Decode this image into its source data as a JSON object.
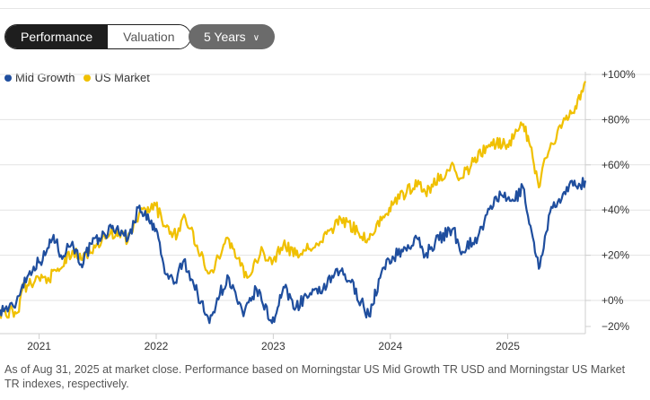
{
  "toggle": {
    "performance": "Performance",
    "valuation": "Valuation"
  },
  "period": {
    "label": "5 Years"
  },
  "colors": {
    "mid_growth": "#1f4e9e",
    "us_market": "#f0c000",
    "grid": "#e3e3e3"
  },
  "chart_data": {
    "type": "line",
    "x_ticks": [
      "2021",
      "2022",
      "2023",
      "2024",
      "2025"
    ],
    "y_ticks": [
      "+100%",
      "+80%",
      "+60%",
      "+40%",
      "+20%",
      "+0%",
      "−20%"
    ],
    "ylim": [
      -20,
      100
    ],
    "xlim": [
      "2020-09-01",
      "2025-08-31"
    ],
    "legend": "top-left",
    "series": [
      {
        "name": "Mid Growth",
        "color": "#1f4e9e",
        "points": [
          [
            "2020-09-01",
            -4
          ],
          [
            "2020-10-15",
            -3
          ],
          [
            "2020-11-10",
            7
          ],
          [
            "2020-12-15",
            15
          ],
          [
            "2021-01-20",
            20
          ],
          [
            "2021-02-15",
            29
          ],
          [
            "2021-03-10",
            20
          ],
          [
            "2021-04-15",
            26
          ],
          [
            "2021-05-12",
            16
          ],
          [
            "2021-06-15",
            25
          ],
          [
            "2021-07-15",
            28
          ],
          [
            "2021-08-15",
            32
          ],
          [
            "2021-09-15",
            31
          ],
          [
            "2021-10-05",
            27
          ],
          [
            "2021-11-10",
            42
          ],
          [
            "2021-12-10",
            35
          ],
          [
            "2022-01-05",
            30
          ],
          [
            "2022-01-28",
            12
          ],
          [
            "2022-03-01",
            8
          ],
          [
            "2022-03-29",
            18
          ],
          [
            "2022-05-10",
            3
          ],
          [
            "2022-06-16",
            -10
          ],
          [
            "2022-07-10",
            1
          ],
          [
            "2022-08-16",
            10
          ],
          [
            "2022-09-30",
            -7
          ],
          [
            "2022-11-10",
            5
          ],
          [
            "2022-12-28",
            -10
          ],
          [
            "2023-01-15",
            -3
          ],
          [
            "2023-02-02",
            6
          ],
          [
            "2023-03-13",
            -3
          ],
          [
            "2023-04-15",
            2
          ],
          [
            "2023-05-20",
            3
          ],
          [
            "2023-07-28",
            13
          ],
          [
            "2023-08-31",
            8
          ],
          [
            "2023-10-27",
            -7
          ],
          [
            "2023-11-30",
            10
          ],
          [
            "2023-12-28",
            18
          ],
          [
            "2024-03-28",
            27
          ],
          [
            "2024-04-19",
            20
          ],
          [
            "2024-05-20",
            26
          ],
          [
            "2024-07-16",
            32
          ],
          [
            "2024-08-05",
            22
          ],
          [
            "2024-09-30",
            28
          ],
          [
            "2024-11-25",
            46
          ],
          [
            "2025-01-20",
            44
          ],
          [
            "2025-02-18",
            50
          ],
          [
            "2025-03-13",
            33
          ],
          [
            "2025-04-08",
            14
          ],
          [
            "2025-05-13",
            39
          ],
          [
            "2025-06-30",
            47
          ],
          [
            "2025-07-28",
            53
          ],
          [
            "2025-08-15",
            51
          ],
          [
            "2025-08-31",
            53
          ]
        ]
      },
      {
        "name": "US Market",
        "color": "#f0c000",
        "points": [
          [
            "2020-09-01",
            -5
          ],
          [
            "2020-10-30",
            -5
          ],
          [
            "2020-11-10",
            5
          ],
          [
            "2020-12-31",
            10
          ],
          [
            "2021-01-29",
            10
          ],
          [
            "2021-03-04",
            13
          ],
          [
            "2021-04-15",
            22
          ],
          [
            "2021-05-12",
            18
          ],
          [
            "2021-06-30",
            25
          ],
          [
            "2021-08-31",
            31
          ],
          [
            "2021-10-04",
            26
          ],
          [
            "2021-11-08",
            38
          ],
          [
            "2021-12-31",
            42
          ],
          [
            "2022-01-27",
            33
          ],
          [
            "2022-03-08",
            29
          ],
          [
            "2022-03-29",
            38
          ],
          [
            "2022-05-20",
            20
          ],
          [
            "2022-06-16",
            12
          ],
          [
            "2022-08-16",
            27
          ],
          [
            "2022-10-12",
            10
          ],
          [
            "2022-11-30",
            22
          ],
          [
            "2022-12-28",
            16
          ],
          [
            "2023-02-02",
            25
          ],
          [
            "2023-03-13",
            20
          ],
          [
            "2023-05-31",
            26
          ],
          [
            "2023-07-31",
            36
          ],
          [
            "2023-10-27",
            27
          ],
          [
            "2023-12-29",
            41
          ],
          [
            "2024-03-28",
            53
          ],
          [
            "2024-04-19",
            48
          ],
          [
            "2024-07-16",
            60
          ],
          [
            "2024-08-05",
            54
          ],
          [
            "2024-11-11",
            70
          ],
          [
            "2024-12-31",
            69
          ],
          [
            "2025-02-19",
            78
          ],
          [
            "2025-03-13",
            68
          ],
          [
            "2025-04-08",
            50
          ],
          [
            "2025-04-30",
            63
          ],
          [
            "2025-06-30",
            80
          ],
          [
            "2025-07-31",
            86
          ],
          [
            "2025-08-31",
            97
          ]
        ]
      }
    ]
  },
  "footnote": "As of Aug 31, 2025 at market close. Performance based on Morningstar US Mid Growth TR USD and Morningstar US Market TR indexes, respectively."
}
